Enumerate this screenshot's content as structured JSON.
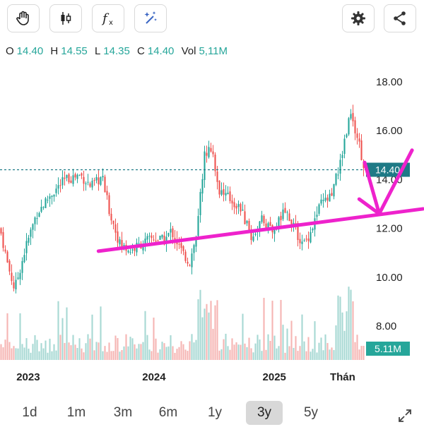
{
  "toolbar": {
    "buttons": [
      {
        "icon": "hand-icon"
      },
      {
        "icon": "candlestick-icon"
      },
      {
        "icon": "fx-icon"
      },
      {
        "icon": "magic-wand-icon"
      },
      {
        "icon": "gear-icon"
      },
      {
        "icon": "share-icon"
      }
    ]
  },
  "ohlc": {
    "o_label": "O",
    "o_value": "14.40",
    "h_label": "H",
    "h_value": "14.55",
    "l_label": "L",
    "l_value": "14.35",
    "c_label": "C",
    "c_value": "14.40",
    "vol_label": "Vol",
    "vol_value": "5,11M"
  },
  "colors": {
    "up": "#26a69a",
    "down": "#ef5350",
    "price_line": "#1e7a86",
    "drawing": "#ee22cc",
    "volume_up": "#a7d8d3",
    "volume_down": "#f5b5b3"
  },
  "chart_data": {
    "type": "candlestick",
    "title": "",
    "y_ticks": [
      "18.00",
      "16.00",
      "14.00",
      "12.00",
      "10.00",
      "8.00"
    ],
    "x_ticks": [
      "2023",
      "2024",
      "2025",
      "Thán"
    ],
    "ylim": [
      7.6,
      18.4
    ],
    "current_price_label": "14.40",
    "current_price": 14.4,
    "volume_label": "5.11M",
    "price_path": [
      {
        "t": 0.0,
        "p": 12.0
      },
      {
        "t": 0.02,
        "p": 10.6
      },
      {
        "t": 0.04,
        "p": 9.5
      },
      {
        "t": 0.07,
        "p": 11.2
      },
      {
        "t": 0.1,
        "p": 12.6
      },
      {
        "t": 0.14,
        "p": 13.4
      },
      {
        "t": 0.18,
        "p": 14.0
      },
      {
        "t": 0.22,
        "p": 14.2
      },
      {
        "t": 0.25,
        "p": 13.7
      },
      {
        "t": 0.28,
        "p": 14.1
      },
      {
        "t": 0.3,
        "p": 12.7
      },
      {
        "t": 0.33,
        "p": 11.3
      },
      {
        "t": 0.36,
        "p": 11.1
      },
      {
        "t": 0.39,
        "p": 11.4
      },
      {
        "t": 0.42,
        "p": 11.6
      },
      {
        "t": 0.45,
        "p": 11.5
      },
      {
        "t": 0.47,
        "p": 11.9
      },
      {
        "t": 0.5,
        "p": 11.0
      },
      {
        "t": 0.52,
        "p": 10.6
      },
      {
        "t": 0.54,
        "p": 11.8
      },
      {
        "t": 0.56,
        "p": 15.0
      },
      {
        "t": 0.58,
        "p": 15.4
      },
      {
        "t": 0.6,
        "p": 13.6
      },
      {
        "t": 0.63,
        "p": 13.2
      },
      {
        "t": 0.66,
        "p": 12.8
      },
      {
        "t": 0.69,
        "p": 11.6
      },
      {
        "t": 0.72,
        "p": 12.4
      },
      {
        "t": 0.75,
        "p": 11.9
      },
      {
        "t": 0.78,
        "p": 12.7
      },
      {
        "t": 0.8,
        "p": 12.3
      },
      {
        "t": 0.83,
        "p": 11.3
      },
      {
        "t": 0.85,
        "p": 11.8
      },
      {
        "t": 0.88,
        "p": 13.0
      },
      {
        "t": 0.91,
        "p": 13.3
      },
      {
        "t": 0.94,
        "p": 15.2
      },
      {
        "t": 0.96,
        "p": 16.8
      },
      {
        "t": 0.98,
        "p": 15.8
      },
      {
        "t": 1.0,
        "p": 14.4
      }
    ],
    "trendline": [
      {
        "t": 0.27,
        "p": 11.07
      },
      {
        "t": 1.16,
        "p": 12.8
      }
    ],
    "arrow": {
      "left_arm": [
        {
          "t": 1.0,
          "p": 14.7
        },
        {
          "t": 1.04,
          "p": 12.6
        }
      ],
      "right_arm": [
        {
          "t": 1.04,
          "p": 12.6
        },
        {
          "t": 1.13,
          "p": 15.2
        }
      ],
      "bottom_arm": [
        {
          "t": 0.985,
          "p": 13.2
        },
        {
          "t": 1.04,
          "p": 12.6
        }
      ]
    }
  },
  "ranges": {
    "items": [
      "1d",
      "1m",
      "3m",
      "6m",
      "1y",
      "3y",
      "5y"
    ],
    "active": "3y"
  }
}
